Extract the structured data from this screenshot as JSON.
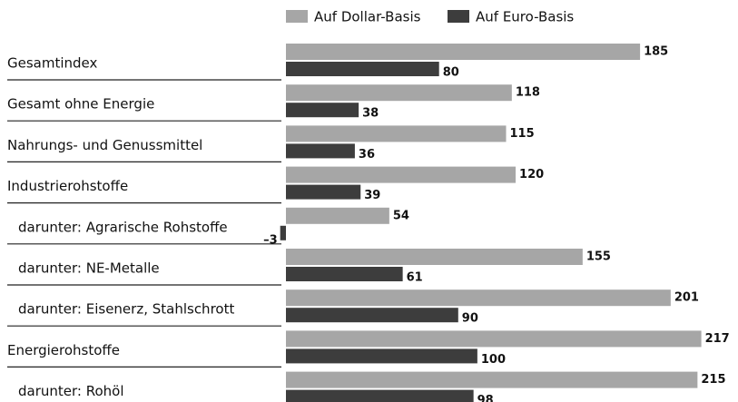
{
  "chart_data": {
    "type": "hbar",
    "categories": [
      "Gesamtindex",
      "Gesamt ohne Energie",
      "Nahrungs- und Genussmittel",
      "Industrierohstoffe",
      "darunter: Agrarische Rohstoffe",
      "darunter: NE-Metalle",
      "darunter: Eisenerz, Stahlschrott",
      "Energierohstoffe",
      "darunter: Rohöl"
    ],
    "series": [
      {
        "name": "Auf Dollar-Basis",
        "color": "#a6a6a6",
        "values": [
          185,
          118,
          115,
          120,
          54,
          155,
          201,
          217,
          215
        ]
      },
      {
        "name": "Auf Euro-Basis",
        "color": "#3d3d3d",
        "values": [
          80,
          38,
          36,
          39,
          -3,
          61,
          90,
          100,
          98
        ],
        "value_labels": [
          "80",
          "38",
          "36",
          "39",
          "–3",
          "61",
          "90",
          "100",
          "98"
        ]
      }
    ],
    "xlim": [
      0,
      230
    ]
  }
}
